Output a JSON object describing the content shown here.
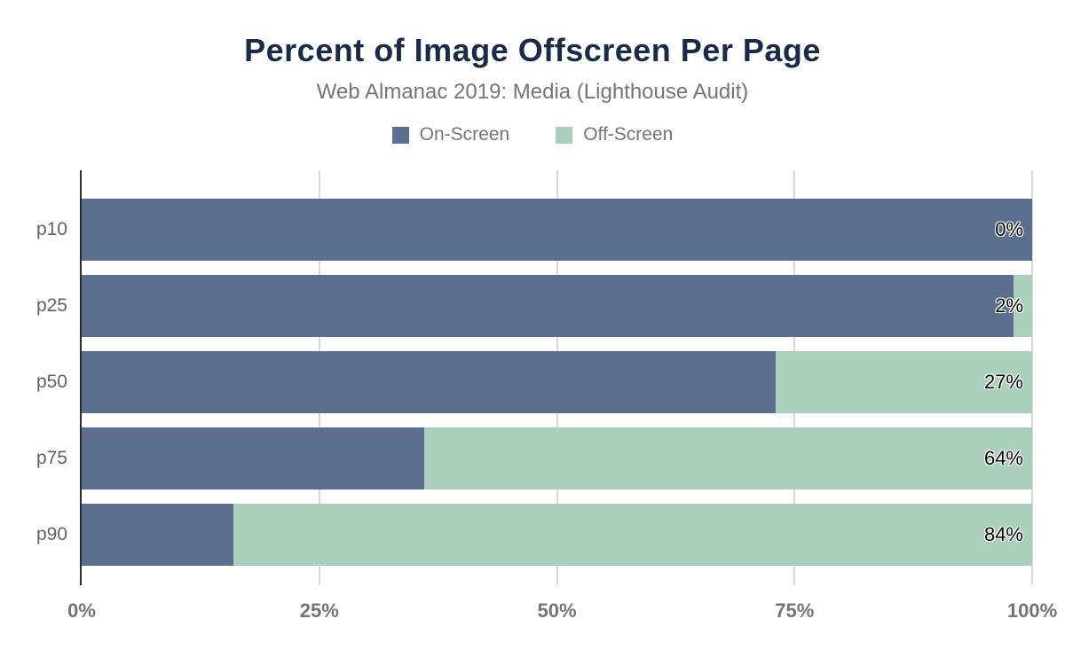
{
  "title": "Percent of Image Offscreen Per Page",
  "subtitle": "Web Almanac 2019: Media (Lighthouse Audit)",
  "colors": {
    "title": "#1a2b49",
    "subtitle": "#757575",
    "on_screen": "#5c6f91",
    "off_screen": "#aacfbb",
    "gridline": "#d9d9d9",
    "axis_line": "#2b2b2b"
  },
  "legend": [
    {
      "label": "On-Screen",
      "color": "#5c6f91"
    },
    {
      "label": "Off-Screen",
      "color": "#aacfbb"
    }
  ],
  "chart_data": {
    "type": "bar",
    "orientation": "horizontal",
    "stacked": true,
    "title": "Percent of Image Offscreen Per Page",
    "subtitle": "Web Almanac 2019: Media (Lighthouse Audit)",
    "categories": [
      "p10",
      "p25",
      "p50",
      "p75",
      "p90"
    ],
    "series": [
      {
        "name": "On-Screen",
        "color": "#5c6f91",
        "values": [
          100,
          98,
          73,
          36,
          16
        ]
      },
      {
        "name": "Off-Screen",
        "color": "#aacfbb",
        "values": [
          0,
          2,
          27,
          64,
          84
        ]
      }
    ],
    "value_labels": [
      "0%",
      "2%",
      "27%",
      "64%",
      "84%"
    ],
    "xlabel": "",
    "ylabel": "",
    "xlim": [
      0,
      100
    ],
    "x_ticks": [
      {
        "label": "0%",
        "value": 0
      },
      {
        "label": "25%",
        "value": 25
      },
      {
        "label": "50%",
        "value": 50
      },
      {
        "label": "75%",
        "value": 75
      },
      {
        "label": "100%",
        "value": 100
      }
    ],
    "grid": true,
    "legend_position": "top"
  }
}
